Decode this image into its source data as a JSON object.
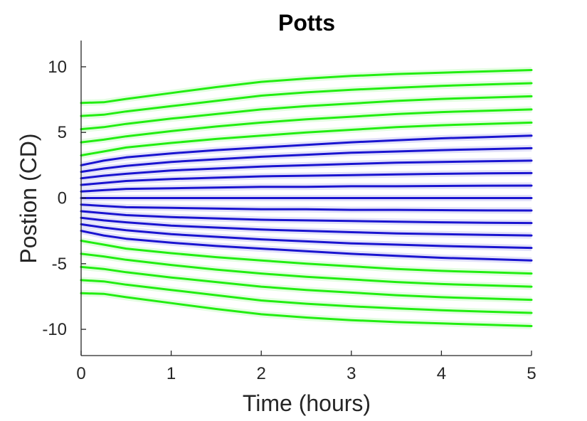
{
  "chart_data": {
    "type": "line",
    "title": "Potts",
    "xlabel": "Time (hours)",
    "ylabel": "Postion (CD)",
    "xlim": [
      0,
      5
    ],
    "ylim": [
      -12,
      12
    ],
    "x_ticks": [
      "0",
      "1",
      "2",
      "3",
      "4",
      "5"
    ],
    "y_ticks": [
      "-10",
      "-5",
      "0",
      "5",
      "10"
    ],
    "grid": false,
    "legend": "none",
    "colors": {
      "outer": "#22ee11",
      "inner": "#1a14d0",
      "axis": "#262626"
    },
    "x": [
      0,
      0.25,
      0.5,
      1,
      1.5,
      2,
      2.5,
      3,
      3.5,
      4,
      4.5,
      5
    ],
    "series": [
      {
        "group": "outer",
        "values": [
          7.25,
          7.3,
          7.55,
          8.0,
          8.45,
          8.85,
          9.1,
          9.3,
          9.45,
          9.55,
          9.65,
          9.75
        ]
      },
      {
        "group": "outer",
        "values": [
          6.25,
          6.35,
          6.6,
          7.0,
          7.4,
          7.8,
          8.05,
          8.25,
          8.4,
          8.55,
          8.65,
          8.75
        ]
      },
      {
        "group": "outer",
        "values": [
          5.25,
          5.4,
          5.65,
          6.05,
          6.4,
          6.75,
          7.0,
          7.2,
          7.4,
          7.55,
          7.65,
          7.75
        ]
      },
      {
        "group": "outer",
        "values": [
          4.25,
          4.45,
          4.7,
          5.1,
          5.45,
          5.75,
          6.0,
          6.2,
          6.4,
          6.55,
          6.65,
          6.75
        ]
      },
      {
        "group": "outer",
        "values": [
          3.25,
          3.55,
          3.85,
          4.2,
          4.5,
          4.75,
          5.0,
          5.2,
          5.4,
          5.55,
          5.65,
          5.75
        ]
      },
      {
        "group": "inner",
        "values": [
          2.5,
          2.85,
          3.1,
          3.4,
          3.65,
          3.85,
          4.05,
          4.25,
          4.4,
          4.55,
          4.65,
          4.75
        ]
      },
      {
        "group": "inner",
        "values": [
          2.0,
          2.25,
          2.45,
          2.75,
          2.95,
          3.15,
          3.3,
          3.45,
          3.55,
          3.65,
          3.72,
          3.8
        ]
      },
      {
        "group": "inner",
        "values": [
          1.5,
          1.7,
          1.85,
          2.1,
          2.25,
          2.4,
          2.5,
          2.6,
          2.7,
          2.75,
          2.8,
          2.85
        ]
      },
      {
        "group": "inner",
        "values": [
          1.0,
          1.15,
          1.3,
          1.45,
          1.55,
          1.65,
          1.7,
          1.75,
          1.8,
          1.85,
          1.88,
          1.9
        ]
      },
      {
        "group": "inner",
        "values": [
          0.5,
          0.6,
          0.7,
          0.75,
          0.8,
          0.85,
          0.85,
          0.9,
          0.9,
          0.92,
          0.94,
          0.95
        ]
      },
      {
        "group": "inner",
        "values": [
          0,
          0,
          0,
          0,
          0,
          0,
          0,
          0,
          0,
          0,
          0,
          0
        ]
      },
      {
        "group": "inner",
        "values": [
          -0.5,
          -0.6,
          -0.7,
          -0.75,
          -0.8,
          -0.85,
          -0.85,
          -0.9,
          -0.9,
          -0.92,
          -0.94,
          -0.95
        ]
      },
      {
        "group": "inner",
        "values": [
          -1.0,
          -1.15,
          -1.3,
          -1.45,
          -1.55,
          -1.65,
          -1.7,
          -1.75,
          -1.8,
          -1.85,
          -1.88,
          -1.9
        ]
      },
      {
        "group": "inner",
        "values": [
          -1.5,
          -1.7,
          -1.85,
          -2.1,
          -2.25,
          -2.4,
          -2.5,
          -2.6,
          -2.7,
          -2.75,
          -2.8,
          -2.85
        ]
      },
      {
        "group": "inner",
        "values": [
          -2.0,
          -2.25,
          -2.45,
          -2.75,
          -2.95,
          -3.15,
          -3.3,
          -3.45,
          -3.55,
          -3.65,
          -3.72,
          -3.8
        ]
      },
      {
        "group": "inner",
        "values": [
          -2.5,
          -2.85,
          -3.1,
          -3.4,
          -3.65,
          -3.85,
          -4.05,
          -4.25,
          -4.4,
          -4.55,
          -4.65,
          -4.75
        ]
      },
      {
        "group": "outer",
        "values": [
          -3.25,
          -3.55,
          -3.85,
          -4.2,
          -4.5,
          -4.75,
          -5.0,
          -5.2,
          -5.4,
          -5.55,
          -5.65,
          -5.75
        ]
      },
      {
        "group": "outer",
        "values": [
          -4.25,
          -4.45,
          -4.7,
          -5.1,
          -5.45,
          -5.75,
          -6.0,
          -6.2,
          -6.4,
          -6.55,
          -6.65,
          -6.75
        ]
      },
      {
        "group": "outer",
        "values": [
          -5.25,
          -5.4,
          -5.65,
          -6.05,
          -6.4,
          -6.75,
          -7.0,
          -7.2,
          -7.4,
          -7.55,
          -7.65,
          -7.75
        ]
      },
      {
        "group": "outer",
        "values": [
          -6.25,
          -6.35,
          -6.6,
          -7.0,
          -7.4,
          -7.8,
          -8.05,
          -8.25,
          -8.4,
          -8.55,
          -8.65,
          -8.75
        ]
      },
      {
        "group": "outer",
        "values": [
          -7.25,
          -7.3,
          -7.55,
          -8.0,
          -8.45,
          -8.85,
          -9.1,
          -9.3,
          -9.45,
          -9.55,
          -9.65,
          -9.75
        ]
      }
    ]
  }
}
